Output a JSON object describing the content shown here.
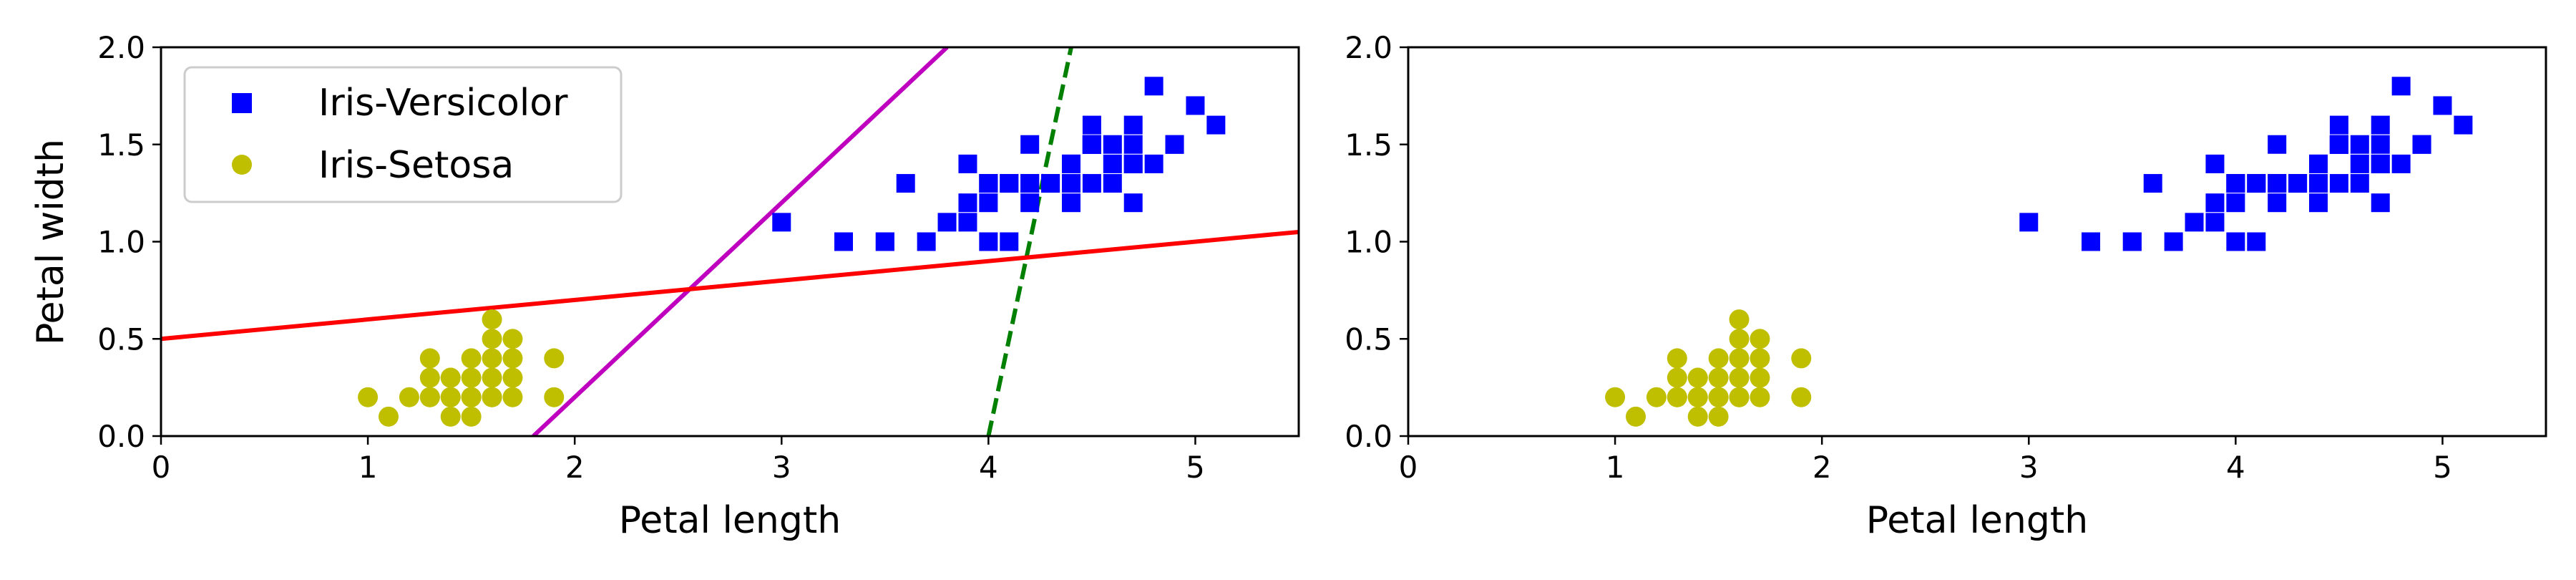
{
  "chart_data": [
    {
      "type": "scatter",
      "xlabel": "Petal length",
      "ylabel": "Petal width",
      "xlim": [
        0,
        5.5
      ],
      "ylim": [
        0,
        2.0
      ],
      "xticks": [
        "0",
        "1",
        "2",
        "3",
        "4",
        "5"
      ],
      "yticks": [
        "0.0",
        "0.5",
        "1.0",
        "1.5",
        "2.0"
      ],
      "grid": false,
      "legend": {
        "location": "upper-left"
      },
      "series": [
        {
          "name": "Iris-Versicolor",
          "marker": "square",
          "color": "#0000ff",
          "points": [
            [
              4.7,
              1.4
            ],
            [
              4.5,
              1.5
            ],
            [
              4.9,
              1.5
            ],
            [
              4.0,
              1.3
            ],
            [
              4.6,
              1.5
            ],
            [
              4.5,
              1.3
            ],
            [
              4.7,
              1.6
            ],
            [
              3.3,
              1.0
            ],
            [
              4.6,
              1.3
            ],
            [
              3.9,
              1.4
            ],
            [
              3.5,
              1.0
            ],
            [
              4.2,
              1.5
            ],
            [
              4.0,
              1.0
            ],
            [
              4.7,
              1.4
            ],
            [
              3.6,
              1.3
            ],
            [
              4.4,
              1.4
            ],
            [
              4.5,
              1.5
            ],
            [
              4.1,
              1.0
            ],
            [
              4.5,
              1.5
            ],
            [
              3.9,
              1.1
            ],
            [
              4.8,
              1.8
            ],
            [
              4.0,
              1.3
            ],
            [
              4.9,
              1.5
            ],
            [
              4.7,
              1.2
            ],
            [
              4.3,
              1.3
            ],
            [
              4.4,
              1.4
            ],
            [
              4.8,
              1.4
            ],
            [
              5.0,
              1.7
            ],
            [
              4.5,
              1.5
            ],
            [
              3.5,
              1.0
            ],
            [
              3.8,
              1.1
            ],
            [
              3.7,
              1.0
            ],
            [
              3.9,
              1.2
            ],
            [
              5.1,
              1.6
            ],
            [
              4.5,
              1.5
            ],
            [
              4.5,
              1.6
            ],
            [
              4.7,
              1.5
            ],
            [
              4.4,
              1.3
            ],
            [
              4.1,
              1.3
            ],
            [
              4.0,
              1.3
            ],
            [
              4.4,
              1.2
            ],
            [
              4.6,
              1.4
            ],
            [
              4.0,
              1.2
            ],
            [
              3.3,
              1.0
            ],
            [
              4.2,
              1.3
            ],
            [
              4.2,
              1.2
            ],
            [
              4.2,
              1.3
            ],
            [
              4.3,
              1.3
            ],
            [
              3.0,
              1.1
            ],
            [
              4.1,
              1.3
            ]
          ]
        },
        {
          "name": "Iris-Setosa",
          "marker": "circle",
          "color": "#bfbf00",
          "points": [
            [
              1.4,
              0.2
            ],
            [
              1.3,
              0.2
            ],
            [
              1.5,
              0.2
            ],
            [
              1.7,
              0.4
            ],
            [
              1.4,
              0.3
            ],
            [
              1.5,
              0.1
            ],
            [
              1.6,
              0.2
            ],
            [
              1.1,
              0.1
            ],
            [
              1.2,
              0.2
            ],
            [
              1.3,
              0.4
            ],
            [
              1.7,
              0.3
            ],
            [
              1.7,
              0.2
            ],
            [
              1.5,
              0.4
            ],
            [
              1.0,
              0.2
            ],
            [
              1.9,
              0.2
            ],
            [
              1.6,
              0.4
            ],
            [
              1.4,
              0.2
            ],
            [
              1.6,
              0.2
            ],
            [
              1.5,
              0.2
            ],
            [
              1.5,
              0.3
            ],
            [
              1.4,
              0.3
            ],
            [
              1.3,
              0.3
            ],
            [
              1.6,
              0.6
            ],
            [
              1.9,
              0.4
            ],
            [
              1.6,
              0.3
            ],
            [
              1.3,
              0.2
            ],
            [
              1.5,
              0.2
            ],
            [
              1.4,
              0.1
            ],
            [
              1.6,
              0.5
            ],
            [
              1.7,
              0.5
            ]
          ]
        }
      ],
      "lines": [
        {
          "style": "dashed",
          "color": "#008000",
          "points": [
            [
              4.0,
              0.0
            ],
            [
              4.4,
              2.0
            ]
          ]
        },
        {
          "style": "solid",
          "color": "#bf00bf",
          "points": [
            [
              1.8,
              0.0
            ],
            [
              3.8,
              2.0
            ]
          ]
        },
        {
          "style": "solid",
          "color": "#ff0000",
          "points": [
            [
              0.0,
              0.5
            ],
            [
              5.5,
              1.05
            ]
          ]
        }
      ]
    },
    {
      "type": "scatter",
      "xlabel": "Petal length",
      "ylabel": "",
      "xlim": [
        0,
        5.5
      ],
      "ylim": [
        0,
        2.0
      ],
      "xticks": [
        "0",
        "1",
        "2",
        "3",
        "4",
        "5"
      ],
      "yticks": [
        "0.0",
        "0.5",
        "1.0",
        "1.5",
        "2.0"
      ],
      "grid": false,
      "series_from_left_panel": true
    }
  ]
}
